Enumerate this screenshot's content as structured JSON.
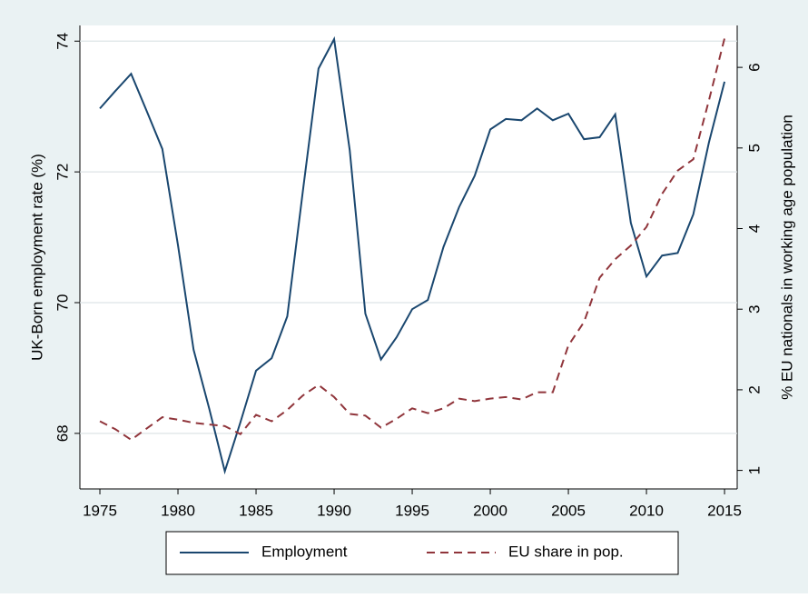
{
  "chart_data": {
    "type": "line",
    "x": [
      1975,
      1976,
      1977,
      1978,
      1979,
      1980,
      1981,
      1982,
      1983,
      1984,
      1985,
      1986,
      1987,
      1988,
      1989,
      1990,
      1991,
      1992,
      1993,
      1994,
      1995,
      1996,
      1997,
      1998,
      1999,
      2000,
      2001,
      2002,
      2003,
      2004,
      2005,
      2006,
      2007,
      2008,
      2009,
      2010,
      2011,
      2012,
      2013,
      2014,
      2015
    ],
    "series": [
      {
        "name": "Employment",
        "color": "#1a476f",
        "axis": "y",
        "values": [
          72.97,
          73.24,
          73.5,
          72.93,
          72.35,
          70.88,
          69.28,
          68.38,
          67.42,
          68.17,
          68.96,
          69.15,
          69.79,
          71.71,
          73.58,
          74.03,
          72.33,
          69.83,
          69.13,
          69.47,
          69.9,
          70.04,
          70.85,
          71.46,
          71.94,
          72.65,
          72.81,
          72.79,
          72.97,
          72.79,
          72.89,
          72.5,
          72.53,
          72.88,
          71.22,
          70.4,
          70.72,
          70.76,
          71.35,
          72.45,
          73.38
        ]
      },
      {
        "name": "EU share in pop.",
        "color": "#90353b",
        "axis": "y2",
        "dashed": true,
        "values": [
          1.61,
          1.51,
          1.38,
          1.52,
          1.66,
          1.63,
          1.59,
          1.57,
          1.55,
          1.45,
          1.69,
          1.61,
          1.75,
          1.93,
          2.06,
          1.91,
          1.7,
          1.68,
          1.53,
          1.64,
          1.77,
          1.71,
          1.77,
          1.89,
          1.86,
          1.89,
          1.91,
          1.88,
          1.97,
          1.97,
          2.55,
          2.84,
          3.39,
          3.62,
          3.79,
          4.02,
          4.43,
          4.72,
          4.86,
          5.59,
          6.36
        ]
      }
    ],
    "y_label": "UK-Born employment rate (%)",
    "y2_label": "% EU nationals in working age population",
    "xlim": [
      1973.72,
      2015.81
    ],
    "xticks": [
      1975,
      1980,
      1985,
      1990,
      1995,
      2000,
      2005,
      2010,
      2015
    ],
    "ylim": [
      67.15,
      74.24
    ],
    "yticks": [
      68,
      70,
      72,
      74
    ],
    "y2lim": [
      0.77,
      6.52
    ],
    "y2ticks": [
      1,
      2,
      3,
      4,
      5,
      6
    ],
    "grid": true,
    "legend": "bottom"
  }
}
